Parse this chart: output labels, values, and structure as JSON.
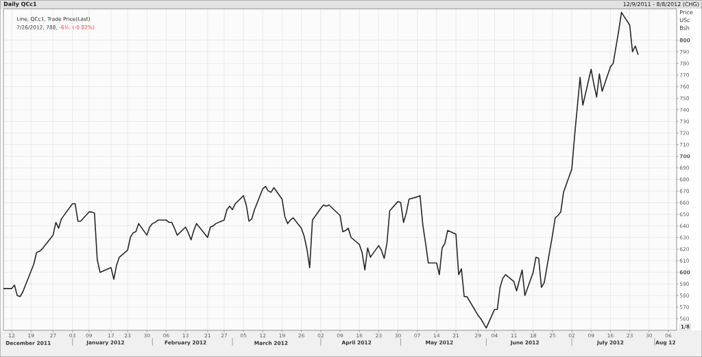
{
  "chart_data": {
    "type": "line",
    "title": "Daily QCc1",
    "subtitle": "12/9/2011 - 8/8/2012 (CHG)",
    "ylabel": "Price USc Bsh",
    "annotations": [
      "7/26/2012, 788,",
      "-6½, (-0.82%)",
      "1/8"
    ],
    "x": [
      "2011-12-09",
      "2011-12-12",
      "2011-12-13",
      "2011-12-14",
      "2011-12-15",
      "2011-12-16",
      "2011-12-19",
      "2011-12-20",
      "2011-12-21",
      "2011-12-22",
      "2011-12-23",
      "2011-12-27",
      "2011-12-28",
      "2011-12-29",
      "2011-12-30",
      "2012-01-03",
      "2012-01-04",
      "2012-01-05",
      "2012-01-06",
      "2012-01-09",
      "2012-01-10",
      "2012-01-11",
      "2012-01-12",
      "2012-01-13",
      "2012-01-17",
      "2012-01-18",
      "2012-01-19",
      "2012-01-20",
      "2012-01-23",
      "2012-01-24",
      "2012-01-25",
      "2012-01-26",
      "2012-01-27",
      "2012-01-30",
      "2012-01-31",
      "2012-02-01",
      "2012-02-02",
      "2012-02-03",
      "2012-02-06",
      "2012-02-07",
      "2012-02-08",
      "2012-02-09",
      "2012-02-10",
      "2012-02-13",
      "2012-02-14",
      "2012-02-15",
      "2012-02-16",
      "2012-02-17",
      "2012-02-21",
      "2012-02-22",
      "2012-02-23",
      "2012-02-24",
      "2012-02-27",
      "2012-02-28",
      "2012-02-29",
      "2012-03-01",
      "2012-03-02",
      "2012-03-05",
      "2012-03-06",
      "2012-03-07",
      "2012-03-08",
      "2012-03-09",
      "2012-03-12",
      "2012-03-13",
      "2012-03-14",
      "2012-03-15",
      "2012-03-16",
      "2012-03-19",
      "2012-03-20",
      "2012-03-21",
      "2012-03-22",
      "2012-03-23",
      "2012-03-26",
      "2012-03-27",
      "2012-03-28",
      "2012-03-29",
      "2012-03-30",
      "2012-04-02",
      "2012-04-03",
      "2012-04-04",
      "2012-04-05",
      "2012-04-09",
      "2012-04-10",
      "2012-04-11",
      "2012-04-12",
      "2012-04-13",
      "2012-04-16",
      "2012-04-17",
      "2012-04-18",
      "2012-04-19",
      "2012-04-20",
      "2012-04-23",
      "2012-04-24",
      "2012-04-25",
      "2012-04-26",
      "2012-04-27",
      "2012-04-30",
      "2012-05-01",
      "2012-05-02",
      "2012-05-03",
      "2012-05-04",
      "2012-05-07",
      "2012-05-08",
      "2012-05-09",
      "2012-05-10",
      "2012-05-11",
      "2012-05-14",
      "2012-05-15",
      "2012-05-16",
      "2012-05-17",
      "2012-05-18",
      "2012-05-21",
      "2012-05-22",
      "2012-05-23",
      "2012-05-24",
      "2012-05-25",
      "2012-05-29",
      "2012-05-30",
      "2012-05-31",
      "2012-06-01",
      "2012-06-04",
      "2012-06-05",
      "2012-06-06",
      "2012-06-07",
      "2012-06-08",
      "2012-06-11",
      "2012-06-12",
      "2012-06-13",
      "2012-06-14",
      "2012-06-15",
      "2012-06-18",
      "2012-06-19",
      "2012-06-20",
      "2012-06-21",
      "2012-06-22",
      "2012-06-25",
      "2012-06-26",
      "2012-06-27",
      "2012-06-28",
      "2012-06-29",
      "2012-07-02",
      "2012-07-03",
      "2012-07-05",
      "2012-07-06",
      "2012-07-09",
      "2012-07-10",
      "2012-07-11",
      "2012-07-12",
      "2012-07-13",
      "2012-07-16",
      "2012-07-17",
      "2012-07-18",
      "2012-07-19",
      "2012-07-20",
      "2012-07-23",
      "2012-07-24",
      "2012-07-25",
      "2012-07-26"
    ],
    "series": [
      {
        "name": "Line, QCc1, Trade Price(Last)",
        "color": "#262626",
        "values": [
          586,
          586,
          589,
          580,
          579,
          583,
          601,
          607,
          617,
          618,
          620,
          632,
          643,
          638,
          646,
          659,
          659,
          644,
          644,
          652,
          652,
          651,
          611,
          600,
          604,
          594,
          606,
          613,
          619,
          630,
          634,
          635,
          642,
          632,
          639,
          642,
          643,
          645,
          645,
          643,
          643,
          638,
          632,
          639,
          634,
          628,
          636,
          642,
          630,
          639,
          640,
          642,
          645,
          654,
          657,
          654,
          659,
          666,
          658,
          644,
          646,
          654,
          672,
          674,
          670,
          669,
          673,
          663,
          648,
          642,
          645,
          647,
          638,
          631,
          620,
          604,
          645,
          655,
          658,
          657,
          658,
          649,
          635,
          636,
          638,
          630,
          624,
          617,
          602,
          621,
          613,
          623,
          619,
          612,
          625,
          653,
          661,
          660,
          643,
          651,
          663,
          665,
          666,
          641,
          625,
          608,
          608,
          598,
          621,
          625,
          636,
          633,
          598,
          603,
          579,
          579,
          563,
          560,
          556,
          552,
          568,
          568,
          587,
          595,
          598,
          592,
          584,
          593,
          602,
          580,
          600,
          613,
          612,
          587,
          591,
          632,
          647,
          649,
          652,
          669,
          689,
          717,
          768,
          744,
          775,
          762,
          751,
          771,
          756,
          777,
          780,
          794,
          808,
          824,
          813,
          790,
          795,
          788
        ]
      }
    ],
    "xlim": [
      "2011-12-09",
      "2012-08-09"
    ],
    "ylim": [
      550,
      827
    ],
    "xticks": [
      {
        "value": "2011-12-12",
        "label": "12"
      },
      {
        "value": "2011-12-19",
        "label": "19"
      },
      {
        "value": "2011-12-27",
        "label": "27"
      },
      {
        "value": "2012-01-03",
        "label": "03"
      },
      {
        "value": "2012-01-09",
        "label": "09"
      },
      {
        "value": "2012-01-17",
        "label": "17"
      },
      {
        "value": "2012-01-23",
        "label": "23"
      },
      {
        "value": "2012-01-30",
        "label": "30"
      },
      {
        "value": "2012-02-06",
        "label": "06"
      },
      {
        "value": "2012-02-13",
        "label": "13"
      },
      {
        "value": "2012-02-21",
        "label": "21"
      },
      {
        "value": "2012-02-27",
        "label": "27"
      },
      {
        "value": "2012-03-05",
        "label": "05"
      },
      {
        "value": "2012-03-12",
        "label": "12"
      },
      {
        "value": "2012-03-19",
        "label": "19"
      },
      {
        "value": "2012-03-26",
        "label": "26"
      },
      {
        "value": "2012-04-02",
        "label": "02"
      },
      {
        "value": "2012-04-09",
        "label": "09"
      },
      {
        "value": "2012-04-16",
        "label": "16"
      },
      {
        "value": "2012-04-23",
        "label": "23"
      },
      {
        "value": "2012-04-30",
        "label": "30"
      },
      {
        "value": "2012-05-07",
        "label": "07"
      },
      {
        "value": "2012-05-14",
        "label": "14"
      },
      {
        "value": "2012-05-21",
        "label": "21"
      },
      {
        "value": "2012-05-29",
        "label": "29"
      },
      {
        "value": "2012-06-04",
        "label": "04"
      },
      {
        "value": "2012-06-11",
        "label": "11"
      },
      {
        "value": "2012-06-18",
        "label": "18"
      },
      {
        "value": "2012-06-25",
        "label": "25"
      },
      {
        "value": "2012-07-02",
        "label": "02"
      },
      {
        "value": "2012-07-09",
        "label": "09"
      },
      {
        "value": "2012-07-16",
        "label": "16"
      },
      {
        "value": "2012-07-23",
        "label": "23"
      },
      {
        "value": "2012-07-30",
        "label": "30"
      },
      {
        "value": "2012-08-06",
        "label": "06"
      }
    ],
    "x2lim": [
      "2011-12-09",
      "2012-08-09"
    ],
    "x2ticks": [
      {
        "value": "2011-12-18",
        "label": "December 2011"
      },
      {
        "value": "2012-01-03",
        "label": null
      },
      {
        "value": "2012-01-15",
        "label": "January 2012"
      },
      {
        "value": "2012-02-01",
        "label": null
      },
      {
        "value": "2012-02-13",
        "label": "February 2012"
      },
      {
        "value": "2012-03-01",
        "label": null
      },
      {
        "value": "2012-03-15",
        "label": "March 2012"
      },
      {
        "value": "2012-04-02",
        "label": null
      },
      {
        "value": "2012-04-15",
        "label": "April 2012"
      },
      {
        "value": "2012-05-01",
        "label": null
      },
      {
        "value": "2012-05-15",
        "label": "May 2012"
      },
      {
        "value": "2012-06-01",
        "label": null
      },
      {
        "value": "2012-06-15",
        "label": "June 2012"
      },
      {
        "value": "2012-07-02",
        "label": null
      },
      {
        "value": "2012-07-16",
        "label": "July 2012"
      },
      {
        "value": "2012-08-01",
        "label": null
      },
      {
        "value": "2012-08-05",
        "label": "Aug 12"
      }
    ],
    "yticks": [
      560,
      570,
      580,
      590,
      600,
      610,
      620,
      630,
      640,
      650,
      660,
      670,
      680,
      690,
      700,
      710,
      720,
      730,
      740,
      750,
      760,
      770,
      780,
      790,
      800
    ],
    "grid": true,
    "legend": "top left",
    "line_style": "solid"
  }
}
